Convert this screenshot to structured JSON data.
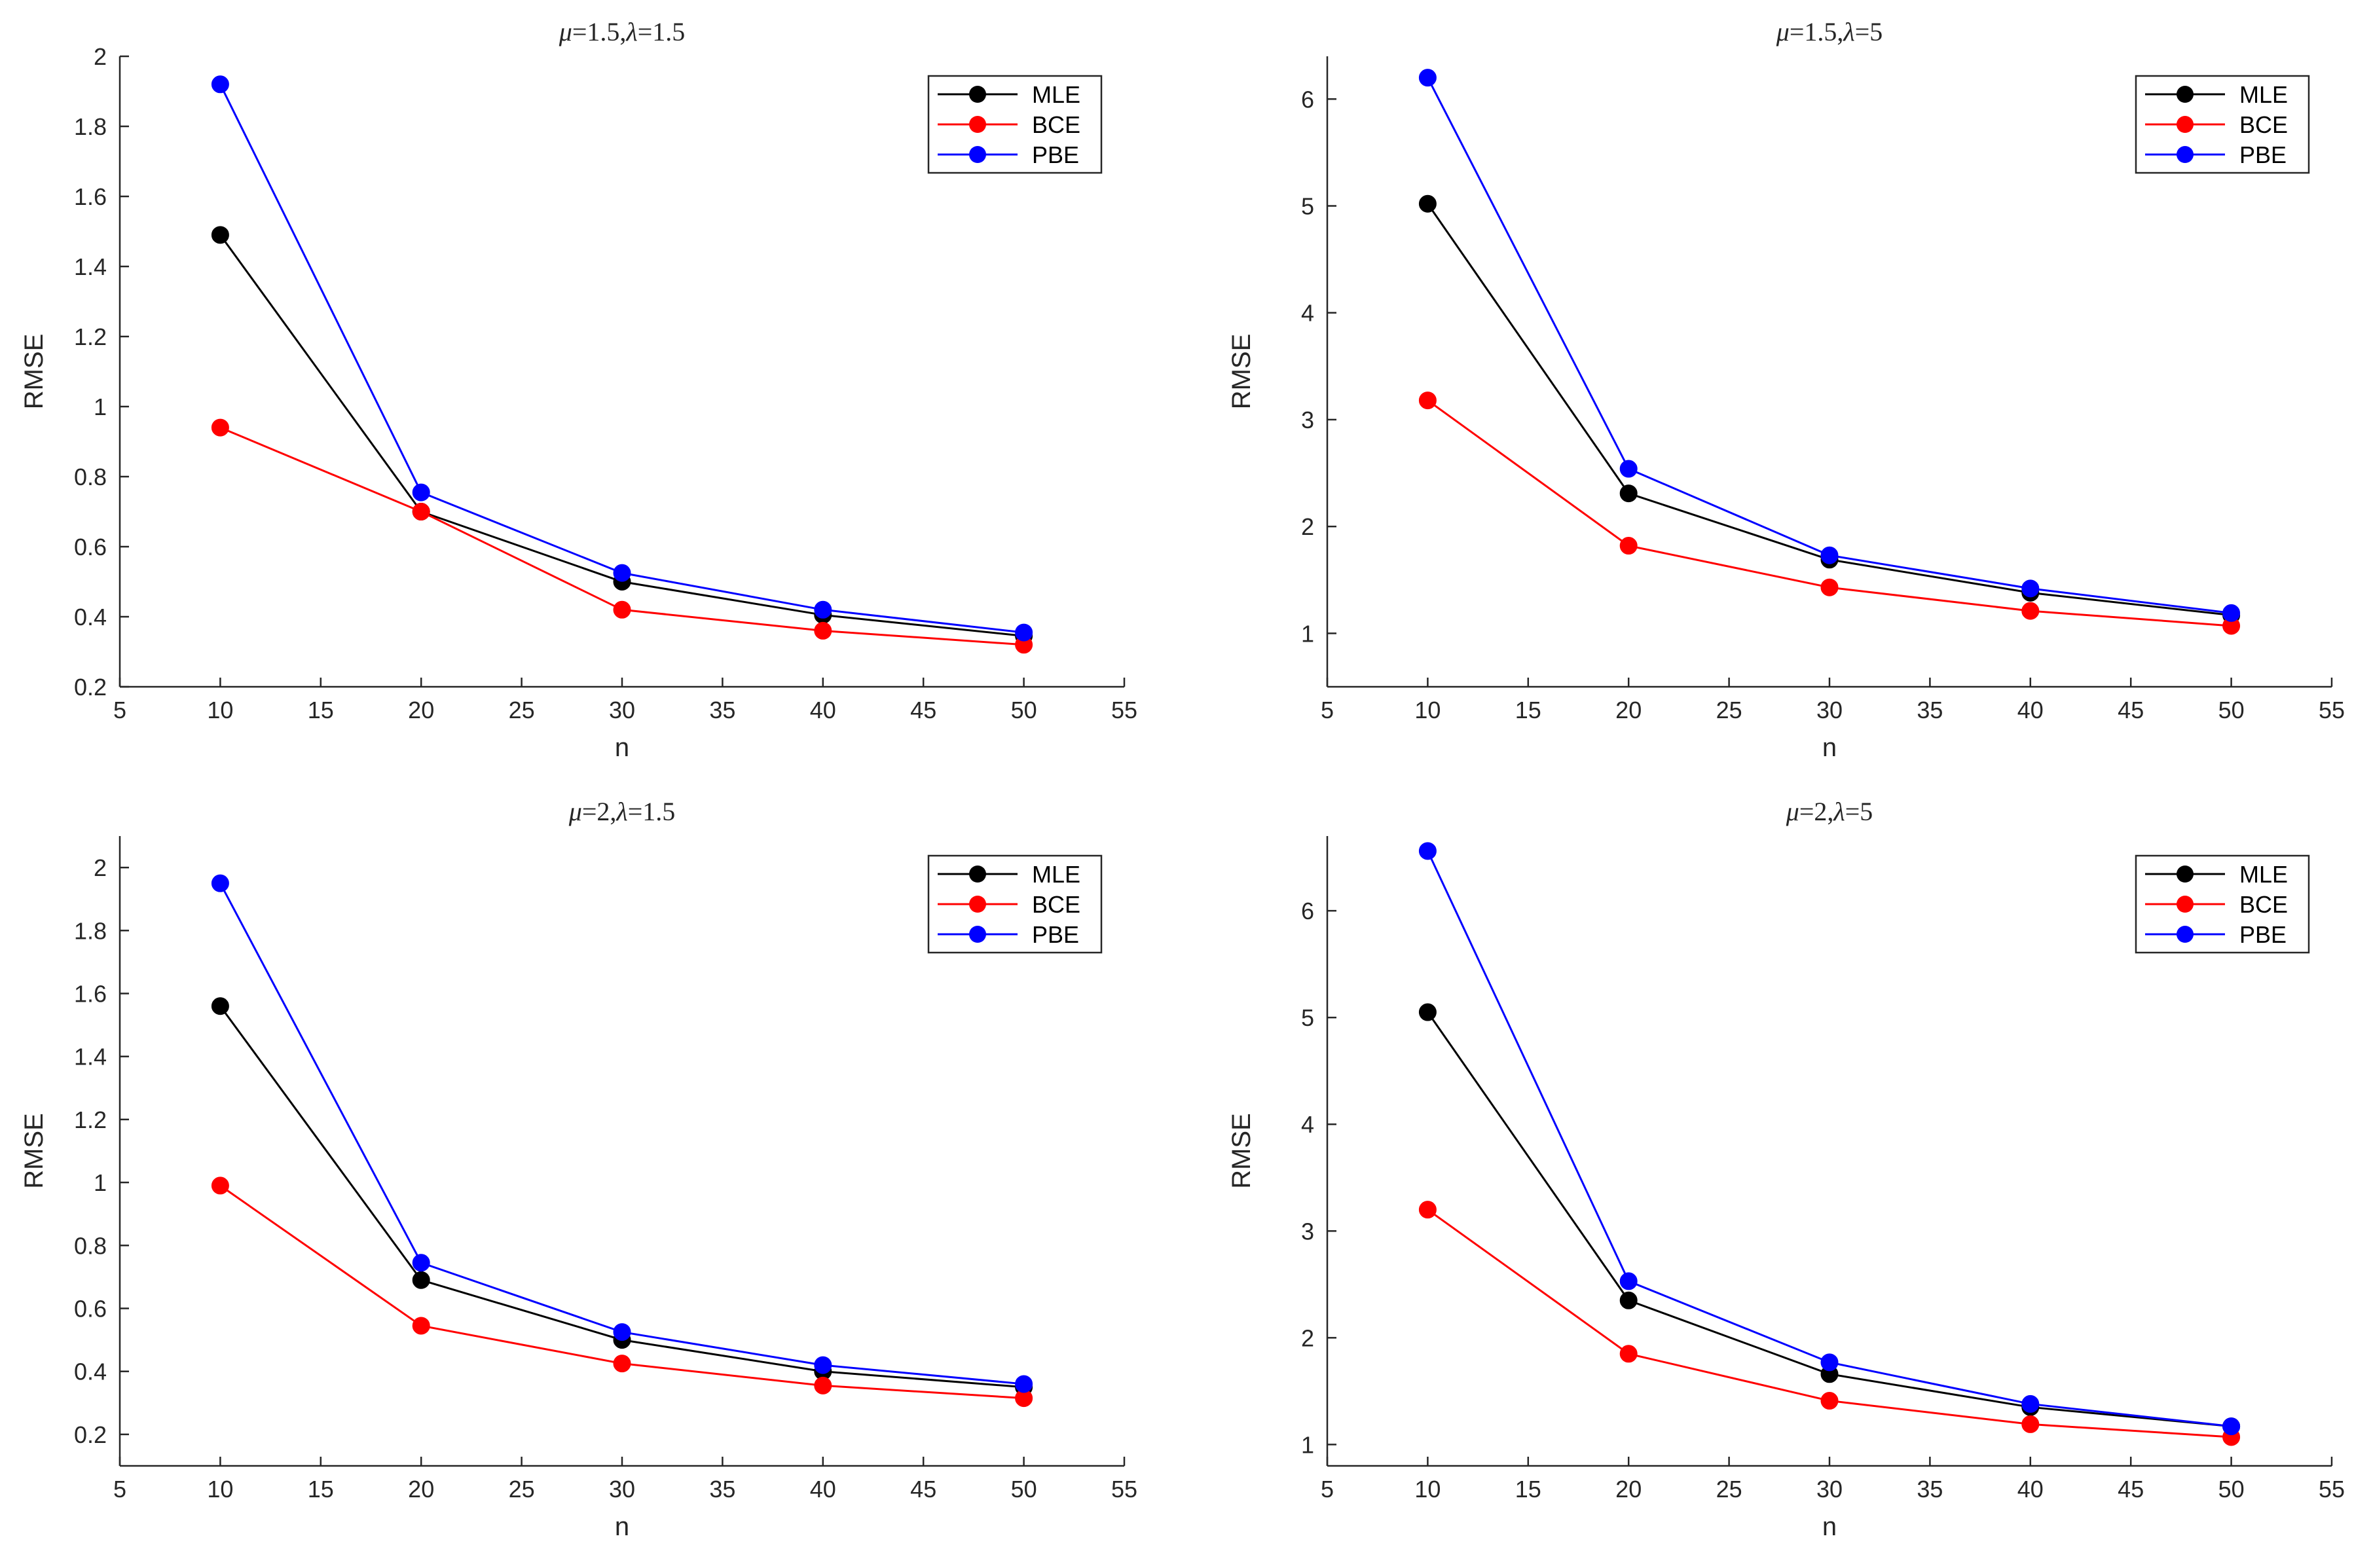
{
  "chart_data": [
    {
      "type": "line",
      "title_mu": "μ",
      "title_mu_value": "=1.5,",
      "title_lambda": "λ",
      "title_lambda_value": "=1.5",
      "xlabel": "n",
      "ylabel": "RMSE",
      "xlim": [
        5,
        55
      ],
      "ylim": [
        0.2,
        2
      ],
      "xticks": [
        "5",
        "10",
        "15",
        "20",
        "25",
        "30",
        "35",
        "40",
        "45",
        "50",
        "55"
      ],
      "yticks": [
        "0.2",
        "0.4",
        "0.6",
        "0.8",
        "1",
        "1.2",
        "1.4",
        "1.6",
        "1.8",
        "2"
      ],
      "x": [
        10,
        20,
        30,
        40,
        50
      ],
      "legend_position": "top-right",
      "series": [
        {
          "name": "MLE",
          "color": "#000000",
          "values": [
            1.49,
            0.7,
            0.5,
            0.405,
            0.345
          ]
        },
        {
          "name": "BCE",
          "color": "#ff0000",
          "values": [
            0.94,
            0.7,
            0.42,
            0.36,
            0.32
          ]
        },
        {
          "name": "PBE",
          "color": "#0000ff",
          "values": [
            1.92,
            0.755,
            0.525,
            0.42,
            0.355
          ]
        }
      ]
    },
    {
      "type": "line",
      "title_mu": "μ",
      "title_mu_value": "=1.5,",
      "title_lambda": "λ",
      "title_lambda_value": "=5",
      "xlabel": "n",
      "ylabel": "RMSE",
      "xlim": [
        5,
        55
      ],
      "ylim": [
        0.5,
        6.4
      ],
      "xticks": [
        "5",
        "10",
        "15",
        "20",
        "25",
        "30",
        "35",
        "40",
        "45",
        "50",
        "55"
      ],
      "yticks": [
        "1",
        "2",
        "3",
        "4",
        "5",
        "6"
      ],
      "x": [
        10,
        20,
        30,
        40,
        50
      ],
      "legend_position": "top-right",
      "series": [
        {
          "name": "MLE",
          "color": "#000000",
          "values": [
            5.02,
            2.31,
            1.69,
            1.38,
            1.17
          ]
        },
        {
          "name": "BCE",
          "color": "#ff0000",
          "values": [
            3.18,
            1.82,
            1.43,
            1.21,
            1.07
          ]
        },
        {
          "name": "PBE",
          "color": "#0000ff",
          "values": [
            6.2,
            2.54,
            1.73,
            1.42,
            1.19
          ]
        }
      ]
    },
    {
      "type": "line",
      "title_mu": "μ",
      "title_mu_value": "=2,",
      "title_lambda": "λ",
      "title_lambda_value": "=1.5",
      "xlabel": "n",
      "ylabel": "RMSE",
      "xlim": [
        5,
        55
      ],
      "ylim": [
        0.1,
        2.1
      ],
      "xticks": [
        "5",
        "10",
        "15",
        "20",
        "25",
        "30",
        "35",
        "40",
        "45",
        "50",
        "55"
      ],
      "yticks": [
        "0.2",
        "0.4",
        "0.6",
        "0.8",
        "1",
        "1.2",
        "1.4",
        "1.6",
        "1.8",
        "2"
      ],
      "x": [
        10,
        20,
        30,
        40,
        50
      ],
      "legend_position": "top-right",
      "series": [
        {
          "name": "MLE",
          "color": "#000000",
          "values": [
            1.56,
            0.69,
            0.5,
            0.4,
            0.35
          ]
        },
        {
          "name": "BCE",
          "color": "#ff0000",
          "values": [
            0.99,
            0.545,
            0.425,
            0.355,
            0.315
          ]
        },
        {
          "name": "PBE",
          "color": "#0000ff",
          "values": [
            1.95,
            0.745,
            0.525,
            0.42,
            0.36
          ]
        }
      ]
    },
    {
      "type": "line",
      "title_mu": "μ",
      "title_mu_value": "=2,",
      "title_lambda": "λ",
      "title_lambda_value": "=5",
      "xlabel": "n",
      "ylabel": "RMSE",
      "xlim": [
        5,
        55
      ],
      "ylim": [
        0.8,
        6.7
      ],
      "xticks": [
        "5",
        "10",
        "15",
        "20",
        "25",
        "30",
        "35",
        "40",
        "45",
        "50",
        "55"
      ],
      "yticks": [
        "1",
        "2",
        "3",
        "4",
        "5",
        "6"
      ],
      "x": [
        10,
        20,
        30,
        40,
        50
      ],
      "legend_position": "top-right",
      "series": [
        {
          "name": "MLE",
          "color": "#000000",
          "values": [
            5.05,
            2.35,
            1.66,
            1.35,
            1.17
          ]
        },
        {
          "name": "BCE",
          "color": "#ff0000",
          "values": [
            3.2,
            1.85,
            1.41,
            1.19,
            1.07
          ]
        },
        {
          "name": "PBE",
          "color": "#0000ff",
          "values": [
            6.56,
            2.53,
            1.77,
            1.38,
            1.17
          ]
        }
      ]
    }
  ]
}
